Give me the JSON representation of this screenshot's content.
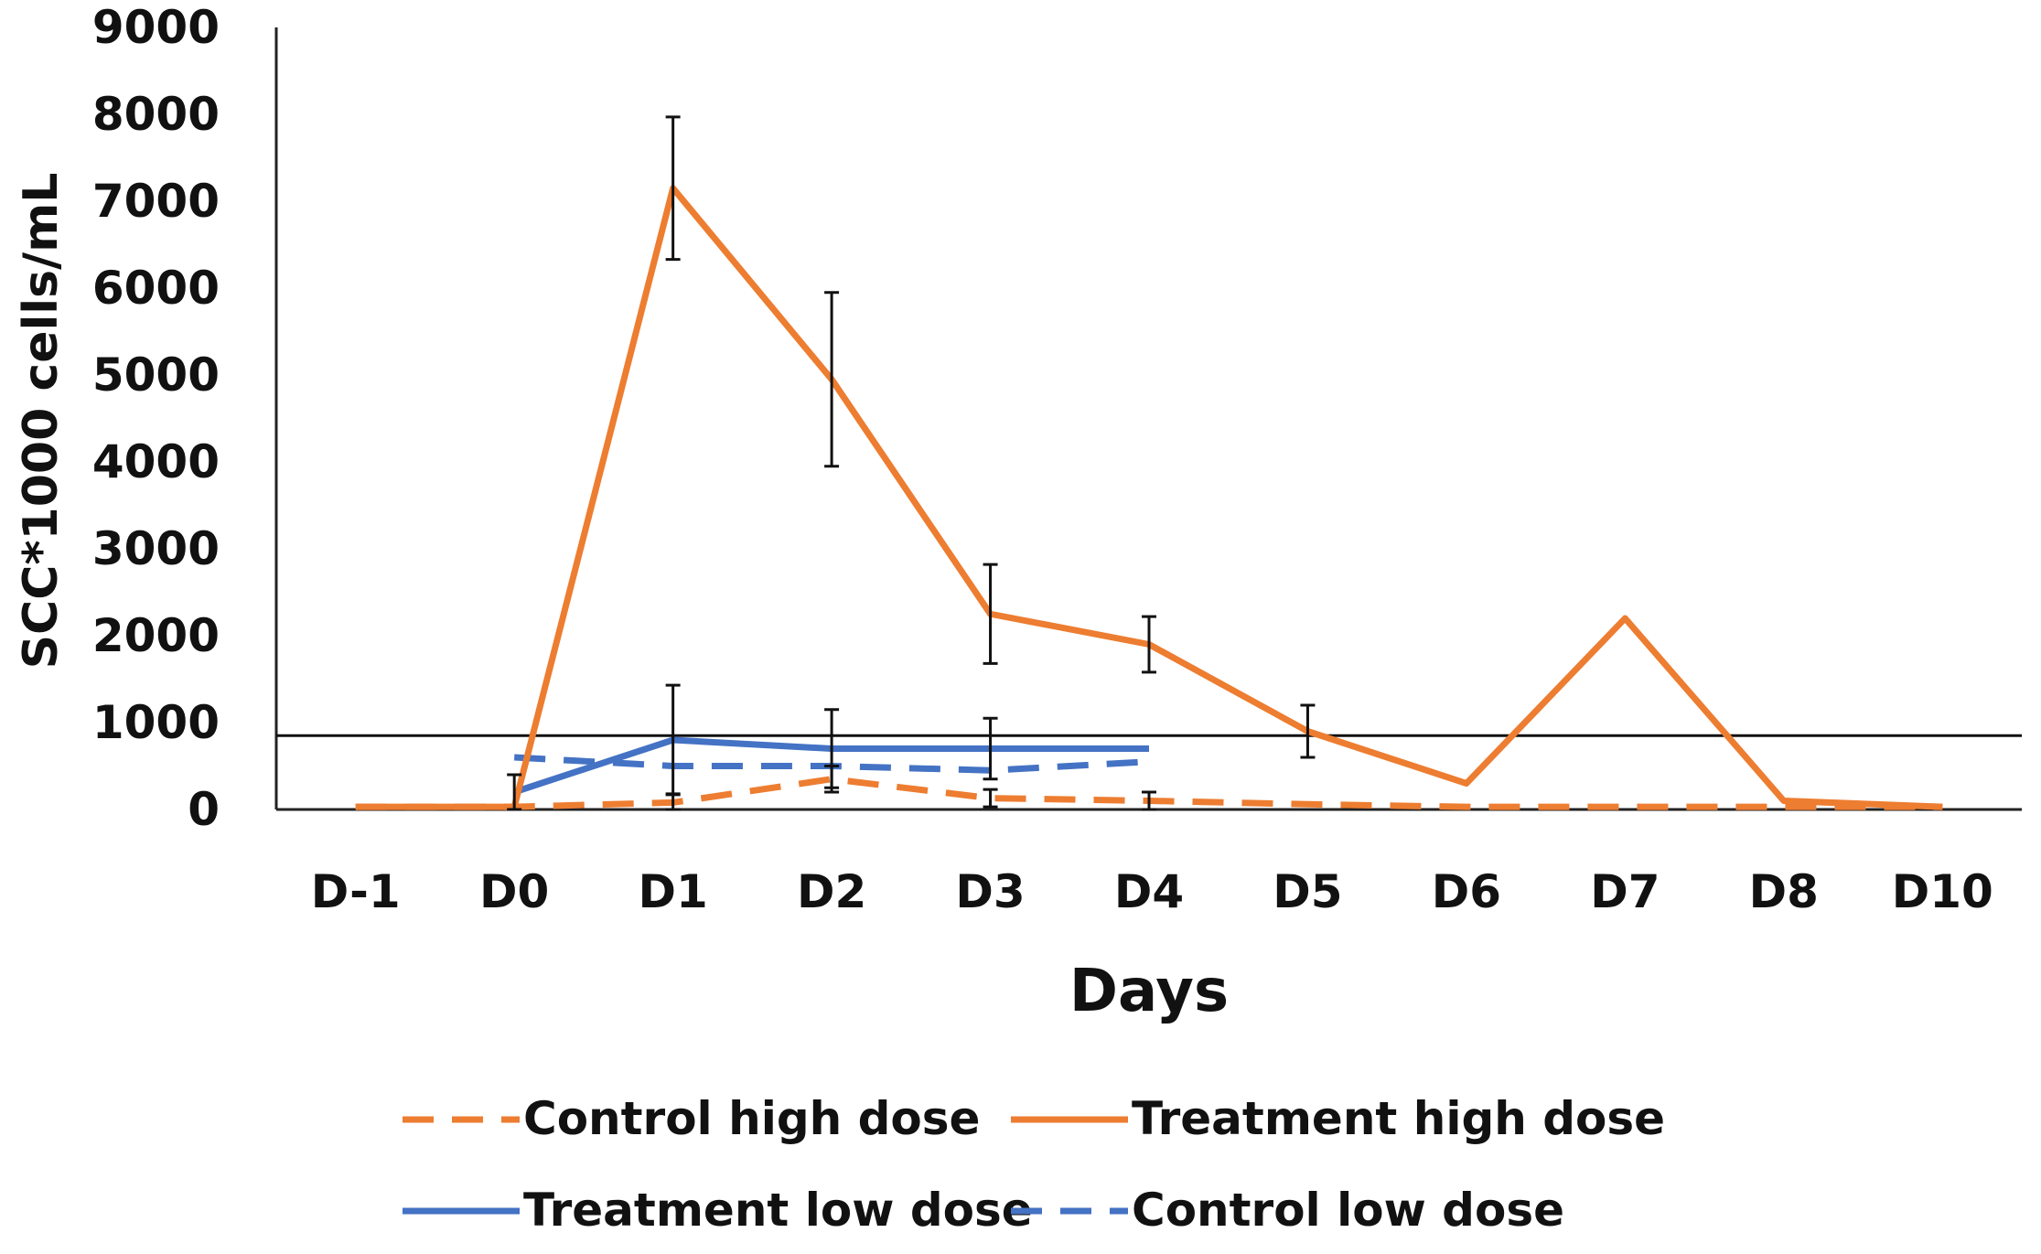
{
  "chart_data": {
    "type": "line",
    "title": "",
    "xlabel": "Days",
    "ylabel": "SCC*1000 cells/mL",
    "ylim": [
      0,
      9000
    ],
    "y_ticks": [
      "0",
      "1000",
      "2000",
      "3000",
      "4000",
      "5000",
      "6000",
      "7000",
      "8000",
      "9000"
    ],
    "categories": [
      "D-1",
      "D0",
      "D1",
      "D2",
      "D3",
      "D4",
      "D5",
      "D6",
      "D7",
      "D8",
      "D10"
    ],
    "reference_line": 850,
    "legend_position": "bottom",
    "series": [
      {
        "name": "Control high dose",
        "color": "#ED7D31",
        "style": "dashed",
        "values": [
          30,
          30,
          80,
          350,
          130,
          100,
          60,
          30,
          30,
          30,
          30
        ],
        "error": [
          0,
          0,
          100,
          150,
          100,
          100,
          0,
          0,
          0,
          0,
          0
        ]
      },
      {
        "name": "Treatment high dose",
        "color": "#ED7D31",
        "style": "solid",
        "values": [
          30,
          30,
          7150,
          4950,
          2250,
          1900,
          900,
          300,
          2200,
          100,
          30
        ],
        "error": [
          0,
          0,
          820,
          1000,
          570,
          320,
          300,
          0,
          0,
          0,
          0
        ]
      },
      {
        "name": "Treatment low dose",
        "color": "#4472C4",
        "style": "solid",
        "values": [
          null,
          200,
          800,
          700,
          700,
          700,
          null,
          null,
          null,
          null,
          null
        ],
        "error": [
          0,
          200,
          630,
          450,
          350,
          0,
          0,
          0,
          0,
          0,
          0
        ]
      },
      {
        "name": "Control low dose",
        "color": "#4472C4",
        "style": "dashed",
        "values": [
          null,
          600,
          500,
          500,
          450,
          550,
          null,
          null,
          null,
          null,
          null
        ],
        "error": [
          0,
          0,
          0,
          0,
          0,
          0,
          0,
          0,
          0,
          0,
          0
        ]
      }
    ]
  }
}
